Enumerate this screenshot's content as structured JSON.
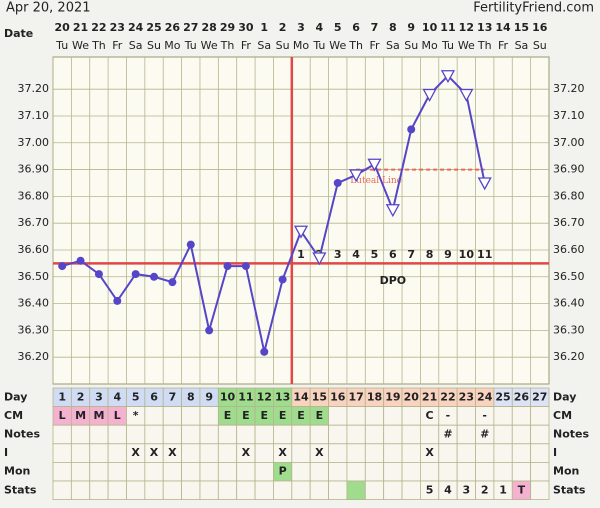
{
  "chart_data": {
    "type": "line",
    "date": "Apr 20, 2021",
    "site": "FertilityFriend.com",
    "x_label": "Date",
    "categories": [
      "20",
      "21",
      "22",
      "23",
      "24",
      "25",
      "26",
      "27",
      "28",
      "29",
      "30",
      "1",
      "2",
      "3",
      "4",
      "5",
      "6",
      "7",
      "8",
      "9",
      "10",
      "11",
      "12",
      "13",
      "14",
      "15",
      "16"
    ],
    "weekdays": [
      "Tu",
      "We",
      "Th",
      "Fr",
      "Sa",
      "Su",
      "Mo",
      "Tu",
      "We",
      "Th",
      "Fr",
      "Sa",
      "Su",
      "Mo",
      "Tu",
      "We",
      "Th",
      "Fr",
      "Sa",
      "Su",
      "Mo",
      "Tu",
      "We",
      "Th",
      "Fr",
      "Sa",
      "Su"
    ],
    "ylim": [
      36.1,
      37.32
    ],
    "yticks": [
      {
        "value": 36.2,
        "label": "36.20"
      },
      {
        "value": 36.3,
        "label": "36.30"
      },
      {
        "value": 36.4,
        "label": "36.40"
      },
      {
        "value": 36.5,
        "label": "36.50"
      },
      {
        "value": 36.6,
        "label": "36.60"
      },
      {
        "value": 36.7,
        "label": "36.70"
      },
      {
        "value": 36.8,
        "label": "36.80"
      },
      {
        "value": 36.9,
        "label": "36.90"
      },
      {
        "value": 37.0,
        "label": "37.00"
      },
      {
        "value": 37.1,
        "label": "37.10"
      },
      {
        "value": 37.2,
        "label": "37.20"
      }
    ],
    "grid": true,
    "series": [
      {
        "color": "#5546c8",
        "values": [
          36.54,
          36.56,
          36.51,
          36.41,
          36.51,
          36.5,
          36.48,
          36.62,
          36.3,
          36.54,
          36.54,
          36.22,
          36.49,
          36.67,
          36.57,
          36.85,
          36.88,
          36.92,
          36.75,
          37.05,
          37.18,
          37.25,
          37.18,
          36.85,
          null,
          null,
          null
        ],
        "markers": [
          "dot",
          "dot",
          "dot",
          "dot",
          "dot",
          "dot",
          "dot",
          "dot",
          "dot",
          "dot",
          "dot",
          "dot",
          "dot",
          "triangle",
          "triangle",
          "dot",
          "triangle",
          "triangle",
          "triangle",
          "dot",
          "triangle",
          "triangle",
          "triangle",
          "triangle",
          null,
          null,
          null
        ]
      }
    ],
    "coverline": {
      "value": 36.55,
      "color": "#e04848"
    },
    "ovulation_day": 13,
    "luteal_line": {
      "label": "Luteal Line",
      "value": 36.9,
      "from_day": 17,
      "to_day": 24,
      "color": "#e86a5a"
    },
    "dpo_label": "DPO",
    "dpo": [
      null,
      null,
      null,
      null,
      null,
      null,
      null,
      null,
      null,
      null,
      null,
      null,
      null,
      1,
      2,
      3,
      4,
      5,
      6,
      7,
      8,
      9,
      10,
      11,
      null,
      null,
      null
    ],
    "table": [
      {
        "label": "Day",
        "cells": [
          1,
          2,
          3,
          4,
          5,
          6,
          7,
          8,
          9,
          10,
          11,
          12,
          13,
          14,
          15,
          16,
          17,
          18,
          19,
          20,
          21,
          22,
          23,
          24,
          25,
          26,
          27
        ]
      },
      {
        "label": "CM",
        "cells": [
          "L",
          "M",
          "M",
          "L",
          "*",
          null,
          null,
          null,
          null,
          "E",
          "E",
          "E",
          "E",
          "E",
          "E",
          null,
          null,
          null,
          null,
          null,
          "C",
          "-",
          null,
          "-",
          null,
          null,
          null
        ]
      },
      {
        "label": "Notes",
        "cells": [
          null,
          null,
          null,
          null,
          null,
          null,
          null,
          null,
          null,
          null,
          null,
          null,
          null,
          null,
          null,
          null,
          null,
          null,
          null,
          null,
          null,
          "#",
          null,
          "#",
          null,
          null,
          null
        ]
      },
      {
        "label": "I",
        "cells": [
          null,
          null,
          null,
          null,
          "X",
          "X",
          "X",
          null,
          null,
          null,
          "X",
          null,
          "X",
          null,
          "X",
          null,
          null,
          null,
          null,
          null,
          "X",
          null,
          null,
          null,
          null,
          null,
          null
        ]
      },
      {
        "label": "Mon",
        "cells": [
          null,
          null,
          null,
          null,
          null,
          null,
          null,
          null,
          null,
          null,
          null,
          null,
          "P",
          null,
          null,
          null,
          null,
          null,
          null,
          null,
          null,
          null,
          null,
          null,
          null,
          null,
          null
        ]
      },
      {
        "label": "Stats",
        "cells": [
          null,
          null,
          null,
          null,
          null,
          null,
          null,
          null,
          null,
          null,
          null,
          null,
          null,
          null,
          null,
          null,
          null,
          null,
          null,
          null,
          "5",
          "4",
          "3",
          "2",
          "1",
          "T",
          null
        ]
      }
    ]
  }
}
